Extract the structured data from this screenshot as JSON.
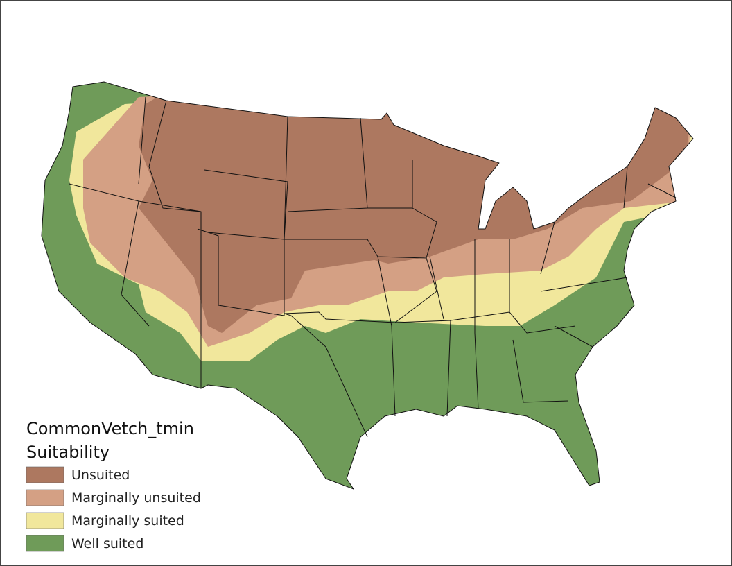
{
  "legend": {
    "title": [
      "CommonVetch_tmin",
      "Suitability"
    ],
    "items": [
      {
        "label": "Unsuited",
        "color": "#ad7860"
      },
      {
        "label": "Marginally unsuited",
        "color": "#d4a084"
      },
      {
        "label": "Marginally suited",
        "color": "#f1e79c"
      },
      {
        "label": "Well suited",
        "color": "#6f9b59"
      }
    ]
  }
}
